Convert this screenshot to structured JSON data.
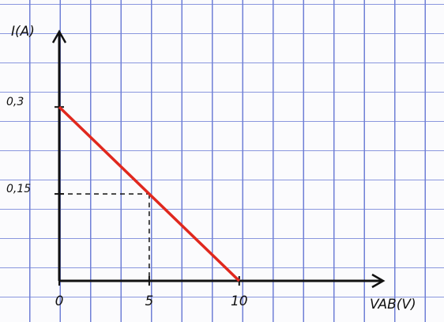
{
  "chart_data": {
    "type": "line",
    "x_label": "VAB(V)",
    "y_label": "I(A)",
    "x": [
      0,
      10
    ],
    "series": [
      {
        "values": [
          0.3,
          0
        ],
        "color": "#e0281e"
      }
    ],
    "xlim": [
      0,
      18
    ],
    "ylim": [
      0,
      0.43
    ],
    "xticks": [
      0,
      5,
      10
    ],
    "yticks": [
      {
        "value": 0.15,
        "label": "0,15"
      },
      {
        "value": 0.3,
        "label": "0,3"
      }
    ]
  }
}
